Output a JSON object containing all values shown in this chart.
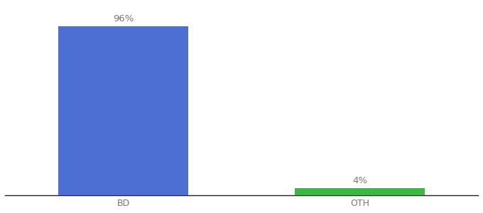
{
  "categories": [
    "BD",
    "OTH"
  ],
  "values": [
    96,
    4
  ],
  "bar_colors": [
    "#4d6fd4",
    "#3cb843"
  ],
  "bar_labels": [
    "96%",
    "4%"
  ],
  "background_color": "#ffffff",
  "ylim": [
    0,
    108
  ],
  "xlim": [
    -0.5,
    1.5
  ],
  "bar_positions": [
    0,
    1
  ],
  "bar_width": 0.55,
  "label_fontsize": 9.5,
  "tick_fontsize": 9,
  "tick_color": "#777777",
  "spine_color": "#222222",
  "label_color": "#777777"
}
